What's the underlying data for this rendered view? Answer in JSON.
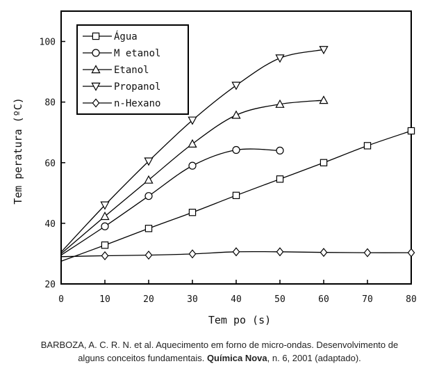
{
  "chart_data": {
    "type": "line",
    "xlabel": "Tem po (s)",
    "ylabel": "Tem peratura (ºC)",
    "xlim": [
      0,
      80
    ],
    "ylim": [
      20,
      110
    ],
    "x_ticks": [
      0,
      10,
      20,
      30,
      40,
      50,
      60,
      70,
      80
    ],
    "y_ticks": [
      20,
      40,
      60,
      80,
      100
    ],
    "grid": false,
    "legend_position": "top-left",
    "series": [
      {
        "name": "Água",
        "marker": "square",
        "x": [
          0,
          10,
          20,
          30,
          40,
          50,
          60,
          70,
          80
        ],
        "y": [
          27.5,
          32.8,
          38.3,
          43.6,
          49.2,
          54.6,
          60.0,
          65.6,
          70.5
        ]
      },
      {
        "name": "M etanol",
        "marker": "circle",
        "x": [
          0,
          10,
          20,
          30,
          40,
          50
        ],
        "y": [
          29.5,
          39.0,
          49.0,
          59.0,
          64.2,
          64.0
        ]
      },
      {
        "name": "Etanol",
        "marker": "triangle-up",
        "x": [
          0,
          10,
          20,
          30,
          40,
          50,
          60
        ],
        "y": [
          30.0,
          42.3,
          54.3,
          66.2,
          75.7,
          79.3,
          80.6
        ]
      },
      {
        "name": "Propanol",
        "marker": "triangle-down",
        "x": [
          0,
          10,
          20,
          30,
          40,
          50,
          60
        ],
        "y": [
          30.5,
          46.0,
          60.5,
          74.0,
          85.5,
          94.5,
          97.3
        ]
      },
      {
        "name": "n-Hexano",
        "marker": "diamond",
        "x": [
          0,
          10,
          20,
          30,
          40,
          50,
          60,
          70,
          80
        ],
        "y": [
          29.0,
          29.3,
          29.5,
          29.9,
          30.6,
          30.6,
          30.4,
          30.3,
          30.3
        ]
      }
    ]
  },
  "caption": {
    "line1": "BARBOZA, A. C. R. N. et al. Aquecimento em forno de micro-ondas. Desenvolvimento de",
    "line2_pre": "alguns conceitos fundamentais. ",
    "line2_bold": "Química Nova",
    "line2_post": ", n. 6, 2001 (adaptado)."
  }
}
